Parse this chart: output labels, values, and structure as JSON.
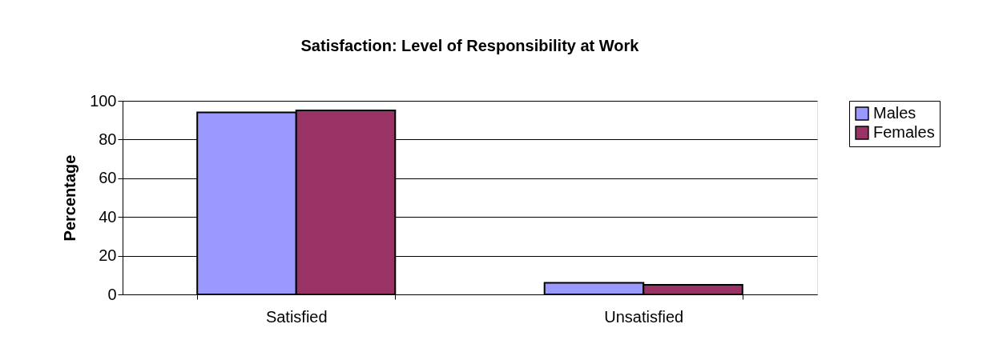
{
  "chart_data": {
    "type": "bar",
    "title": "Satisfaction: Level of Responsibility at Work",
    "ylabel": "Percentage",
    "categories": [
      "Satisfied",
      "Unsatisfied"
    ],
    "series": [
      {
        "name": "Males",
        "color": "#9999ff",
        "values": [
          94,
          6
        ]
      },
      {
        "name": "Females",
        "color": "#993366",
        "values": [
          95,
          5
        ]
      }
    ],
    "ylim": [
      0,
      100
    ],
    "yticks": [
      0,
      20,
      40,
      60,
      80,
      100
    ],
    "grid": "y",
    "legend": "right"
  }
}
